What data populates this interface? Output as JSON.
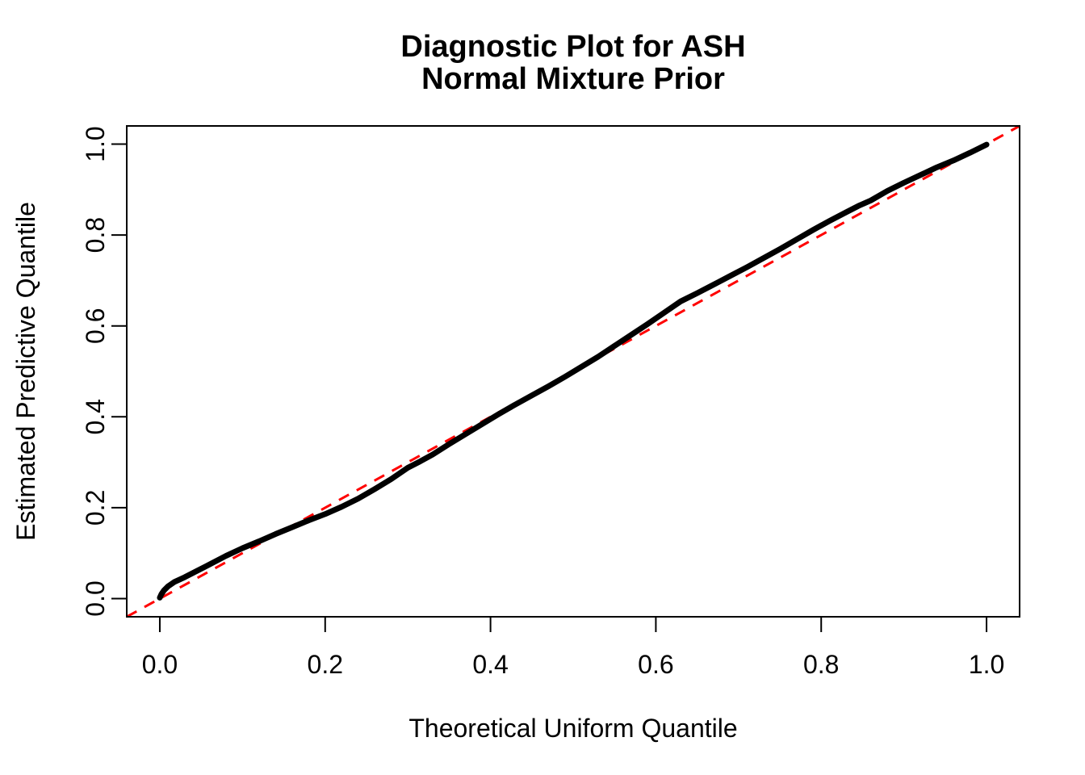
{
  "figure": {
    "background_color": "#ffffff"
  },
  "chart_data": {
    "type": "line",
    "title": "Diagnostic Plot for ASH\nNormal Mixture Prior",
    "title_lines": [
      "Diagnostic Plot for ASH",
      "Normal Mixture Prior"
    ],
    "xlabel": "Theoretical Uniform Quantile",
    "ylabel": "Estimated Predictive Quantile",
    "xlim": [
      -0.04,
      1.04
    ],
    "ylim": [
      -0.04,
      1.04
    ],
    "x_ticks": [
      0.0,
      0.2,
      0.4,
      0.6,
      0.8,
      1.0
    ],
    "y_ticks": [
      0.0,
      0.2,
      0.4,
      0.6,
      0.8,
      1.0
    ],
    "x_tick_labels": [
      "0.0",
      "0.2",
      "0.4",
      "0.6",
      "0.8",
      "1.0"
    ],
    "y_tick_labels": [
      "0.0",
      "0.2",
      "0.4",
      "0.6",
      "0.8",
      "1.0"
    ],
    "grid": false,
    "legend": "none",
    "colors": {
      "curve": "#000000",
      "reference_line": "#ff0000",
      "axis": "#000000",
      "text": "#000000",
      "background": "#ffffff"
    },
    "series": [
      {
        "name": "estimated-predictive-quantile-curve",
        "style": "solid",
        "color": "#000000",
        "line_width": 7,
        "points": [
          [
            0.0,
            0.002
          ],
          [
            0.002,
            0.01
          ],
          [
            0.005,
            0.018
          ],
          [
            0.01,
            0.027
          ],
          [
            0.018,
            0.037
          ],
          [
            0.03,
            0.047
          ],
          [
            0.045,
            0.061
          ],
          [
            0.06,
            0.075
          ],
          [
            0.08,
            0.094
          ],
          [
            0.1,
            0.111
          ],
          [
            0.12,
            0.126
          ],
          [
            0.14,
            0.142
          ],
          [
            0.16,
            0.157
          ],
          [
            0.18,
            0.172
          ],
          [
            0.2,
            0.186
          ],
          [
            0.22,
            0.202
          ],
          [
            0.24,
            0.22
          ],
          [
            0.26,
            0.241
          ],
          [
            0.28,
            0.263
          ],
          [
            0.3,
            0.288
          ],
          [
            0.315,
            0.302
          ],
          [
            0.33,
            0.317
          ],
          [
            0.35,
            0.34
          ],
          [
            0.37,
            0.362
          ],
          [
            0.39,
            0.384
          ],
          [
            0.41,
            0.406
          ],
          [
            0.43,
            0.427
          ],
          [
            0.45,
            0.447
          ],
          [
            0.47,
            0.467
          ],
          [
            0.49,
            0.488
          ],
          [
            0.51,
            0.51
          ],
          [
            0.53,
            0.532
          ],
          [
            0.55,
            0.556
          ],
          [
            0.57,
            0.58
          ],
          [
            0.59,
            0.604
          ],
          [
            0.61,
            0.629
          ],
          [
            0.63,
            0.654
          ],
          [
            0.65,
            0.672
          ],
          [
            0.67,
            0.691
          ],
          [
            0.69,
            0.71
          ],
          [
            0.71,
            0.729
          ],
          [
            0.73,
            0.749
          ],
          [
            0.75,
            0.769
          ],
          [
            0.77,
            0.79
          ],
          [
            0.79,
            0.811
          ],
          [
            0.81,
            0.831
          ],
          [
            0.83,
            0.85
          ],
          [
            0.845,
            0.864
          ],
          [
            0.86,
            0.876
          ],
          [
            0.88,
            0.897
          ],
          [
            0.9,
            0.915
          ],
          [
            0.92,
            0.932
          ],
          [
            0.94,
            0.949
          ],
          [
            0.96,
            0.964
          ],
          [
            0.98,
            0.981
          ],
          [
            1.0,
            0.999
          ]
        ]
      },
      {
        "name": "reference-diagonal-line",
        "style": "dashed",
        "color": "#ff0000",
        "line_width": 3,
        "points": [
          [
            -0.04,
            -0.04
          ],
          [
            1.04,
            1.04
          ]
        ]
      }
    ]
  }
}
